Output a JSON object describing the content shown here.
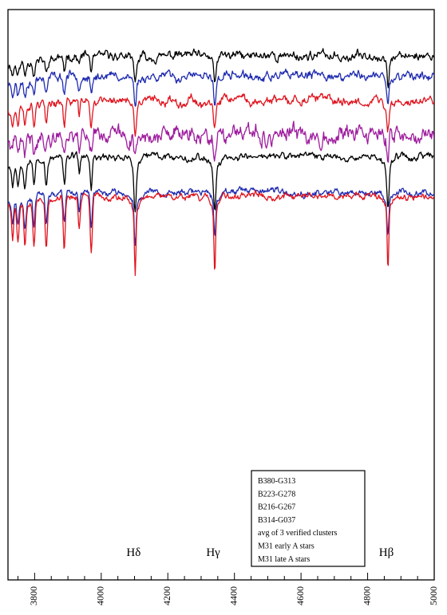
{
  "chart_data": {
    "type": "line",
    "title": "",
    "xlabel": "",
    "ylabel": "",
    "xlim": [
      3720,
      5000
    ],
    "x_ticks": [
      3800,
      4000,
      4200,
      4400,
      4600,
      4800,
      5000
    ],
    "x_tick_labels": [
      "3800",
      "4000",
      "4200",
      "4400",
      "4600",
      "4800",
      "5000"
    ],
    "y_ticks_labeled": false,
    "annotations": [
      {
        "text": "Hδ",
        "x": 4102
      },
      {
        "text": "Hγ",
        "x": 4341
      },
      {
        "text": "Hβ",
        "x": 4861
      }
    ],
    "legend": {
      "placement": "bottom-right",
      "entries": [
        "B380-G313",
        "B223-G278",
        "B216-G267",
        "B314-G037",
        "avg of 3 verified clusters",
        "M31 early A stars",
        "M31 late A stars"
      ]
    },
    "line_x": [
      4102,
      4341,
      4861
    ],
    "series": [
      {
        "name": "B380-G313",
        "color": "#000000",
        "continuum": 0.6,
        "depths": [
          2.2,
          1.9,
          2.2
        ],
        "balmer_depth": 1.5,
        "width": 8,
        "noise": 0.5,
        "seed": 11
      },
      {
        "name": "B223-G278",
        "color": "#1f2bb0",
        "continuum": -1.2,
        "depths": [
          2.2,
          2.0,
          2.0
        ],
        "balmer_depth": 1.7,
        "width": 8,
        "noise": 0.5,
        "seed": 23
      },
      {
        "name": "B216-G267",
        "color": "#e0141e",
        "continuum": -3.4,
        "depths": [
          2.8,
          2.4,
          2.2
        ],
        "balmer_depth": 2.5,
        "width": 9,
        "noise": 0.5,
        "seed": 37
      },
      {
        "name": "B314-G037",
        "color": "#9e1c9e",
        "continuum": -6.5,
        "depths": [
          1.8,
          2.0,
          1.6
        ],
        "balmer_depth": 1.2,
        "width": 8,
        "noise": 0.9,
        "seed": 41
      },
      {
        "name": "avg of 3 verified clusters",
        "color": "#000000",
        "continuum": -8.4,
        "depths": [
          4.0,
          3.8,
          3.7
        ],
        "balmer_depth": 2.8,
        "width": 9,
        "noise": 0.4,
        "seed": 53
      },
      {
        "name": "M31 early A stars",
        "color": "#1f2bb0",
        "continuum": -11.6,
        "depths": [
          3.6,
          3.3,
          3.0
        ],
        "balmer_depth": 3.2,
        "width": 7,
        "noise": 0.35,
        "seed": 67
      },
      {
        "name": "M31 late A stars",
        "color": "#e0141e",
        "continuum": -12.0,
        "depths": [
          5.6,
          5.6,
          5.3
        ],
        "balmer_depth": 5.0,
        "width": 6,
        "noise": 0.35,
        "seed": 79
      }
    ]
  }
}
